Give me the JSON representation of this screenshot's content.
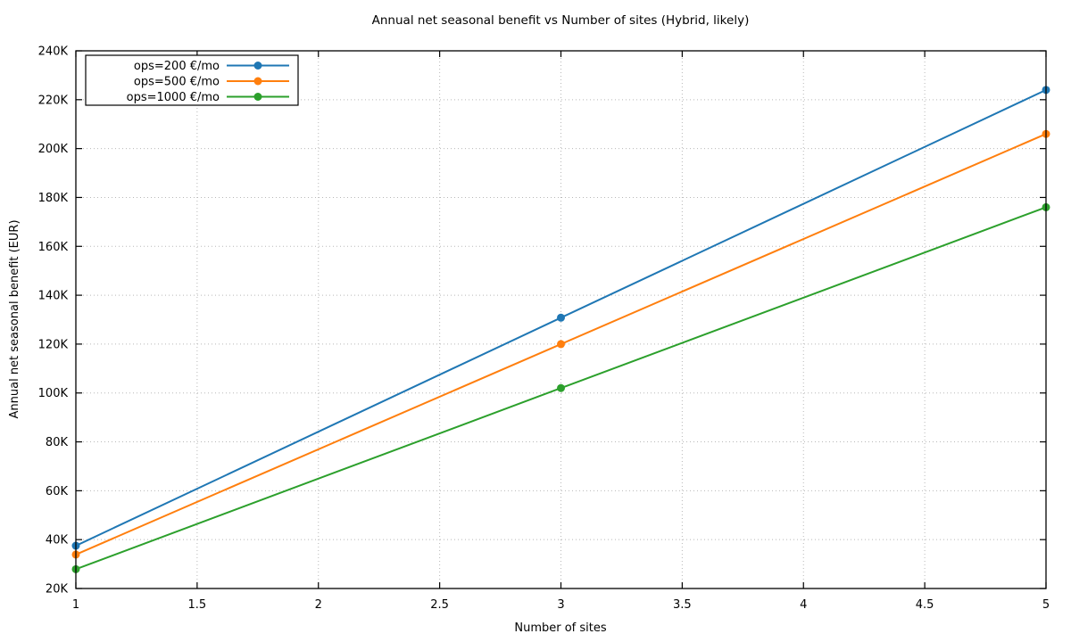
{
  "chart_data": {
    "type": "line",
    "title": "Annual net seasonal benefit vs Number of sites (Hybrid, likely)",
    "xlabel": "Number of sites",
    "ylabel": "Annual net seasonal benefit (EUR)",
    "xlim": [
      1,
      5
    ],
    "ylim": [
      20000,
      240000
    ],
    "xticks": [
      1,
      1.5,
      2,
      2.5,
      3,
      3.5,
      4,
      4.5,
      5
    ],
    "xtick_labels": [
      "1",
      "1.5",
      "2",
      "2.5",
      "3",
      "3.5",
      "4",
      "4.5",
      "5"
    ],
    "yticks": [
      20000,
      40000,
      60000,
      80000,
      100000,
      120000,
      140000,
      160000,
      180000,
      200000,
      220000,
      240000
    ],
    "ytick_labels": [
      "20K",
      "40K",
      "60K",
      "80K",
      "100K",
      "120K",
      "140K",
      "160K",
      "180K",
      "200K",
      "220K",
      "240K"
    ],
    "grid": true,
    "legend_position": "top-left",
    "marker": "filled-circle",
    "x": [
      1,
      3,
      5
    ],
    "series": [
      {
        "name": "ops=200 €/mo",
        "color": "#1f77b4",
        "values": [
          37500,
          130800,
          224000
        ]
      },
      {
        "name": "ops=500 €/mo",
        "color": "#ff7f0e",
        "values": [
          33900,
          120000,
          206000
        ]
      },
      {
        "name": "ops=1000 €/mo",
        "color": "#2ca02c",
        "values": [
          27900,
          102000,
          176000
        ]
      }
    ]
  }
}
